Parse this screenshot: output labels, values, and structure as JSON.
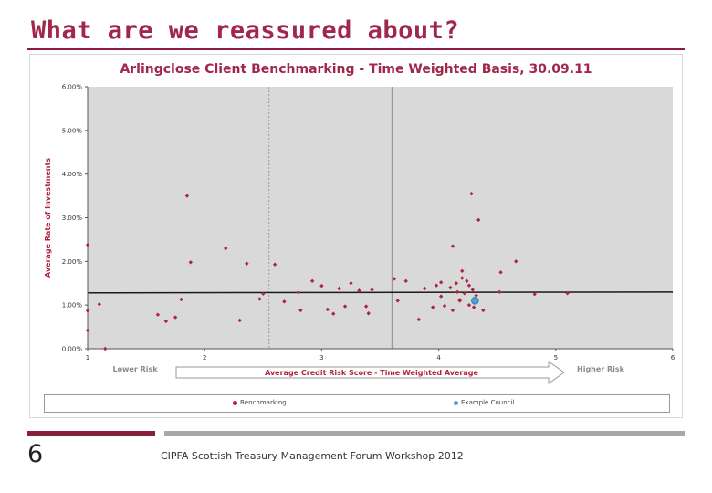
{
  "slide": {
    "title": "What are we reassured about?",
    "number": "6",
    "footer": "CIPFA Scottish Treasury Management Forum Workshop 2012"
  },
  "colors": {
    "title": "#a0284a",
    "accent_rule": "#8a1f3c",
    "plot_bg": "#d9d9d9",
    "benchmark": "#b0243c",
    "example": "#4aa3df"
  },
  "chart_data": {
    "type": "scatter",
    "title": "Arlingclose Client Benchmarking - Time Weighted Basis, 30.09.11",
    "xlabel": "Average Credit Risk Score - Time Weighted Average",
    "ylabel": "Average Rate of Investments",
    "xlim": [
      1,
      6
    ],
    "ylim": [
      0,
      6
    ],
    "xticks": [
      "1",
      "2",
      "3",
      "4",
      "5",
      "6"
    ],
    "yticks": [
      "0.00%",
      "1.00%",
      "2.00%",
      "3.00%",
      "4.00%",
      "5.00%",
      "6.00%"
    ],
    "annotations": {
      "left": "Lower Risk",
      "right": "Higher Risk"
    },
    "grid": false,
    "legend_position": "bottom",
    "reference_lines": {
      "solid_x": 3.6,
      "dashed_x": 2.55,
      "trend_y_start": 1.28,
      "trend_y_end": 1.3
    },
    "series": [
      {
        "name": "Benchmarking",
        "marker": "diamond",
        "points": [
          [
            1.0,
            2.38
          ],
          [
            1.0,
            0.87
          ],
          [
            1.0,
            0.42
          ],
          [
            1.1,
            1.02
          ],
          [
            1.15,
            0.0
          ],
          [
            1.6,
            0.78
          ],
          [
            1.67,
            0.63
          ],
          [
            1.75,
            0.72
          ],
          [
            1.8,
            1.13
          ],
          [
            1.85,
            3.5
          ],
          [
            1.88,
            1.98
          ],
          [
            2.18,
            2.3
          ],
          [
            2.3,
            0.65
          ],
          [
            2.36,
            1.95
          ],
          [
            2.47,
            1.14
          ],
          [
            2.5,
            1.26
          ],
          [
            2.6,
            1.93
          ],
          [
            2.68,
            1.08
          ],
          [
            2.8,
            1.29
          ],
          [
            2.82,
            0.88
          ],
          [
            2.92,
            1.55
          ],
          [
            3.0,
            1.44
          ],
          [
            3.05,
            0.9
          ],
          [
            3.1,
            0.8
          ],
          [
            3.15,
            1.38
          ],
          [
            3.2,
            0.97
          ],
          [
            3.25,
            1.5
          ],
          [
            3.32,
            1.33
          ],
          [
            3.38,
            0.97
          ],
          [
            3.4,
            0.81
          ],
          [
            3.43,
            1.35
          ],
          [
            3.62,
            1.6
          ],
          [
            3.65,
            1.1
          ],
          [
            3.72,
            1.55
          ],
          [
            3.83,
            0.67
          ],
          [
            3.88,
            1.38
          ],
          [
            3.95,
            0.95
          ],
          [
            3.98,
            1.45
          ],
          [
            4.02,
            1.52
          ],
          [
            4.02,
            1.2
          ],
          [
            4.05,
            0.98
          ],
          [
            4.1,
            1.4
          ],
          [
            4.12,
            2.35
          ],
          [
            4.12,
            0.88
          ],
          [
            4.15,
            1.5
          ],
          [
            4.18,
            1.1
          ],
          [
            4.2,
            1.78
          ],
          [
            4.22,
            1.27
          ],
          [
            4.24,
            1.55
          ],
          [
            4.26,
            1.0
          ],
          [
            4.28,
            3.55
          ],
          [
            4.29,
            1.35
          ],
          [
            4.32,
            1.22
          ],
          [
            4.34,
            2.95
          ],
          [
            4.38,
            0.88
          ],
          [
            4.18,
            1.12
          ],
          [
            4.3,
            0.95
          ],
          [
            4.2,
            1.62
          ],
          [
            4.26,
            1.45
          ],
          [
            4.16,
            1.3
          ],
          [
            4.53,
            1.75
          ],
          [
            4.66,
            2.0
          ],
          [
            4.52,
            1.3
          ],
          [
            4.82,
            1.25
          ],
          [
            5.1,
            1.27
          ]
        ]
      },
      {
        "name": "Example Council",
        "marker": "circle",
        "points": [
          [
            4.31,
            1.1
          ]
        ]
      }
    ]
  }
}
